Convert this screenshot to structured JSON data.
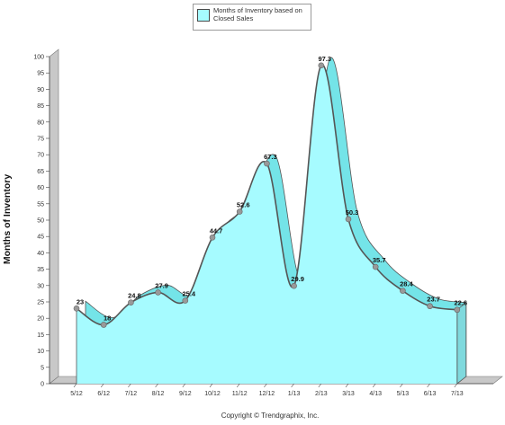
{
  "legend": {
    "label": "Months of Inventory based on Closed Sales"
  },
  "footer": {
    "copyright": "Copyright © Trendgraphix, Inc."
  },
  "colors": {
    "fill": "#a6fbff",
    "top_face": "#74e4e8",
    "line": "#555555",
    "marker": "#999999",
    "wall": "#c8c8c8"
  },
  "chart_data": {
    "type": "area",
    "title": "",
    "xlabel": "",
    "ylabel": "Months of Inventory",
    "categories": [
      "5/12",
      "6/12",
      "7/12",
      "8/12",
      "9/12",
      "10/12",
      "11/12",
      "12/12",
      "1/13",
      "2/13",
      "3/13",
      "4/13",
      "5/13",
      "6/13",
      "7/13"
    ],
    "series": [
      {
        "name": "Months of Inventory based on Closed Sales",
        "values": [
          23,
          18,
          24.8,
          27.9,
          25.4,
          44.7,
          52.6,
          67.3,
          29.9,
          97.3,
          50.3,
          35.7,
          28.4,
          23.7,
          22.6
        ],
        "labels": [
          "23",
          "18",
          "24.8",
          "27.9",
          "25.4",
          "44.7",
          "52.6",
          "67.3",
          "29.9",
          "97.3",
          "50.3",
          "35.7",
          "28.4",
          "23.7",
          "22.6"
        ]
      }
    ],
    "ylim": [
      0,
      100
    ],
    "yticks": [
      "0",
      "5",
      "10",
      "15",
      "20",
      "25",
      "30",
      "35",
      "40",
      "45",
      "50",
      "55",
      "60",
      "65",
      "70",
      "75",
      "80",
      "85",
      "90",
      "95",
      "100"
    ],
    "grid": false,
    "legend_position": "top-center"
  }
}
